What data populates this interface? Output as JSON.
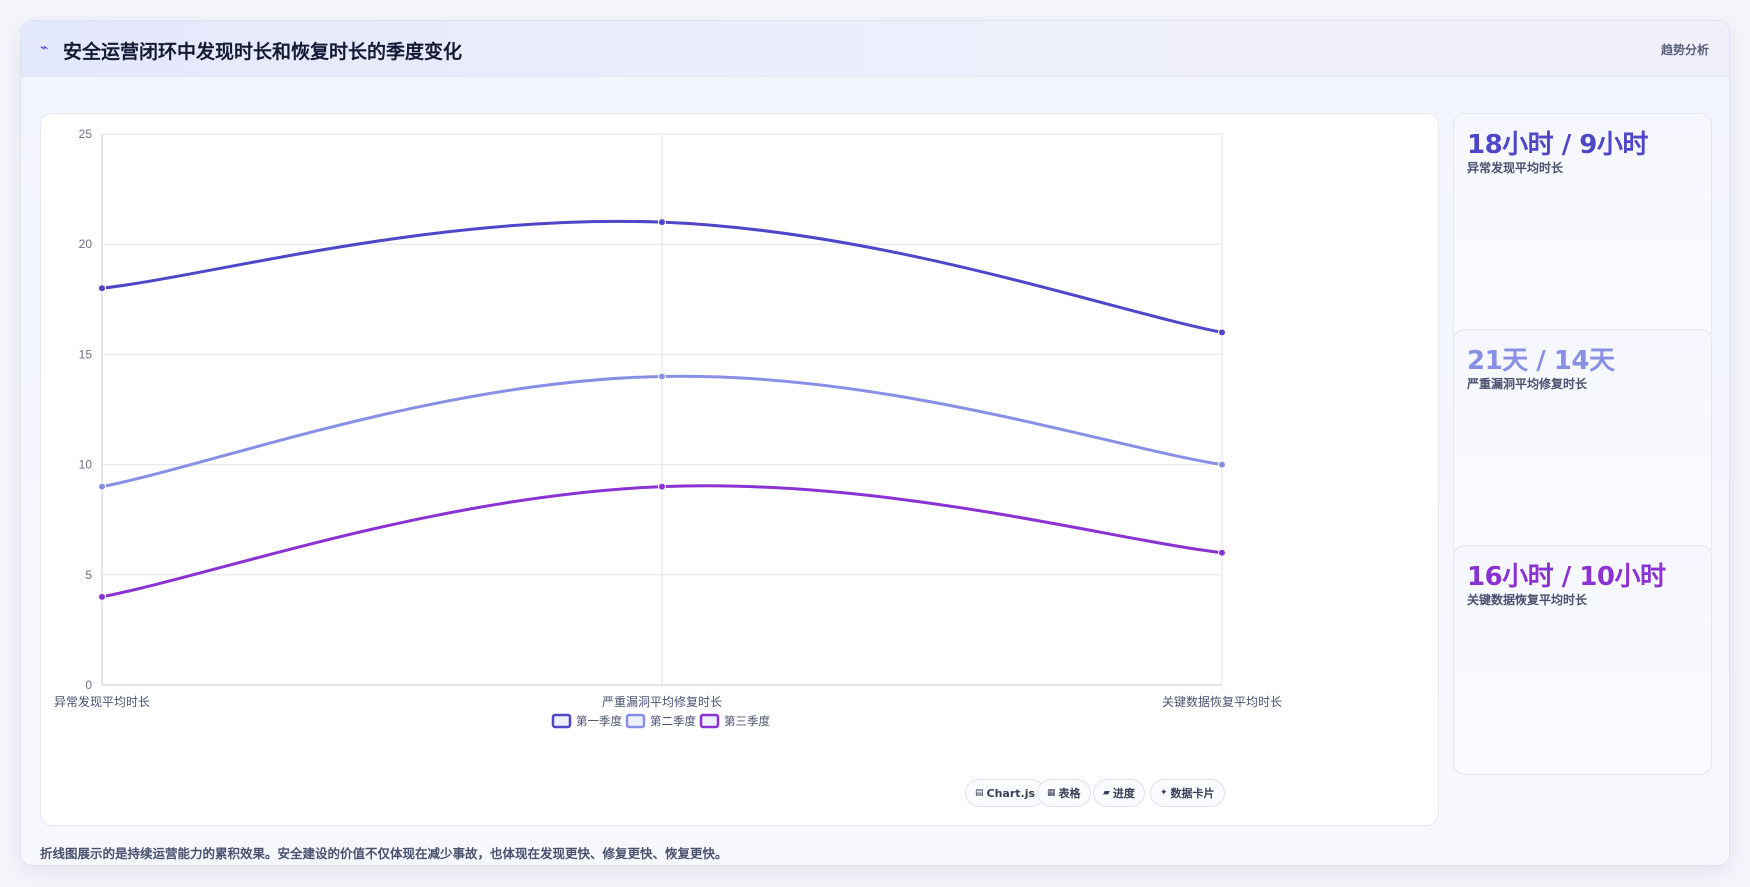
{
  "header": {
    "icon": "pulse-icon",
    "title": "安全运营闭环中发现时长和恢复时长的季度变化",
    "tag": "趋势分析"
  },
  "chart_data": {
    "type": "line",
    "categories": [
      "异常发现平均时长",
      "严重漏洞平均修复时长",
      "关键数据恢复平均时长"
    ],
    "series": [
      {
        "name": "第一季度",
        "values": [
          18,
          21,
          16
        ],
        "color": "#4f46c8"
      },
      {
        "name": "第二季度",
        "values": [
          9,
          14,
          10
        ],
        "color": "#8890e6"
      },
      {
        "name": "第三季度",
        "values": [
          4,
          9,
          6
        ],
        "color": "#8a32d2"
      }
    ],
    "ylim": [
      0,
      25
    ],
    "yticks": [
      0,
      5,
      10,
      15,
      20,
      25
    ],
    "grid": true,
    "legend_position": "bottom",
    "smooth": true
  },
  "side_cards": [
    {
      "value": "18小时 / 9小时",
      "label": "异常发现平均时长",
      "color": "#4f46c8"
    },
    {
      "value": "21天 / 14天",
      "label": "严重漏洞平均修复时长",
      "color": "#8890e6"
    },
    {
      "value": "16小时 / 10小时",
      "label": "关键数据恢复平均时长",
      "color": "#8a32d2"
    }
  ],
  "footnote": "折线图展示的是持续运营能力的累积效果。安全建设的价值不仅体现在减少事故，也体现在发现更快、修复更快、恢复更快。",
  "chips": [
    {
      "icon": "bar-chart-icon",
      "glyph": "▤",
      "label": "Chart.js"
    },
    {
      "icon": "table-icon",
      "glyph": "▦",
      "label": "表格"
    },
    {
      "icon": "progress-icon",
      "glyph": "▰",
      "label": "进度"
    },
    {
      "icon": "card-icon",
      "glyph": "✦",
      "label": "数据卡片"
    }
  ]
}
